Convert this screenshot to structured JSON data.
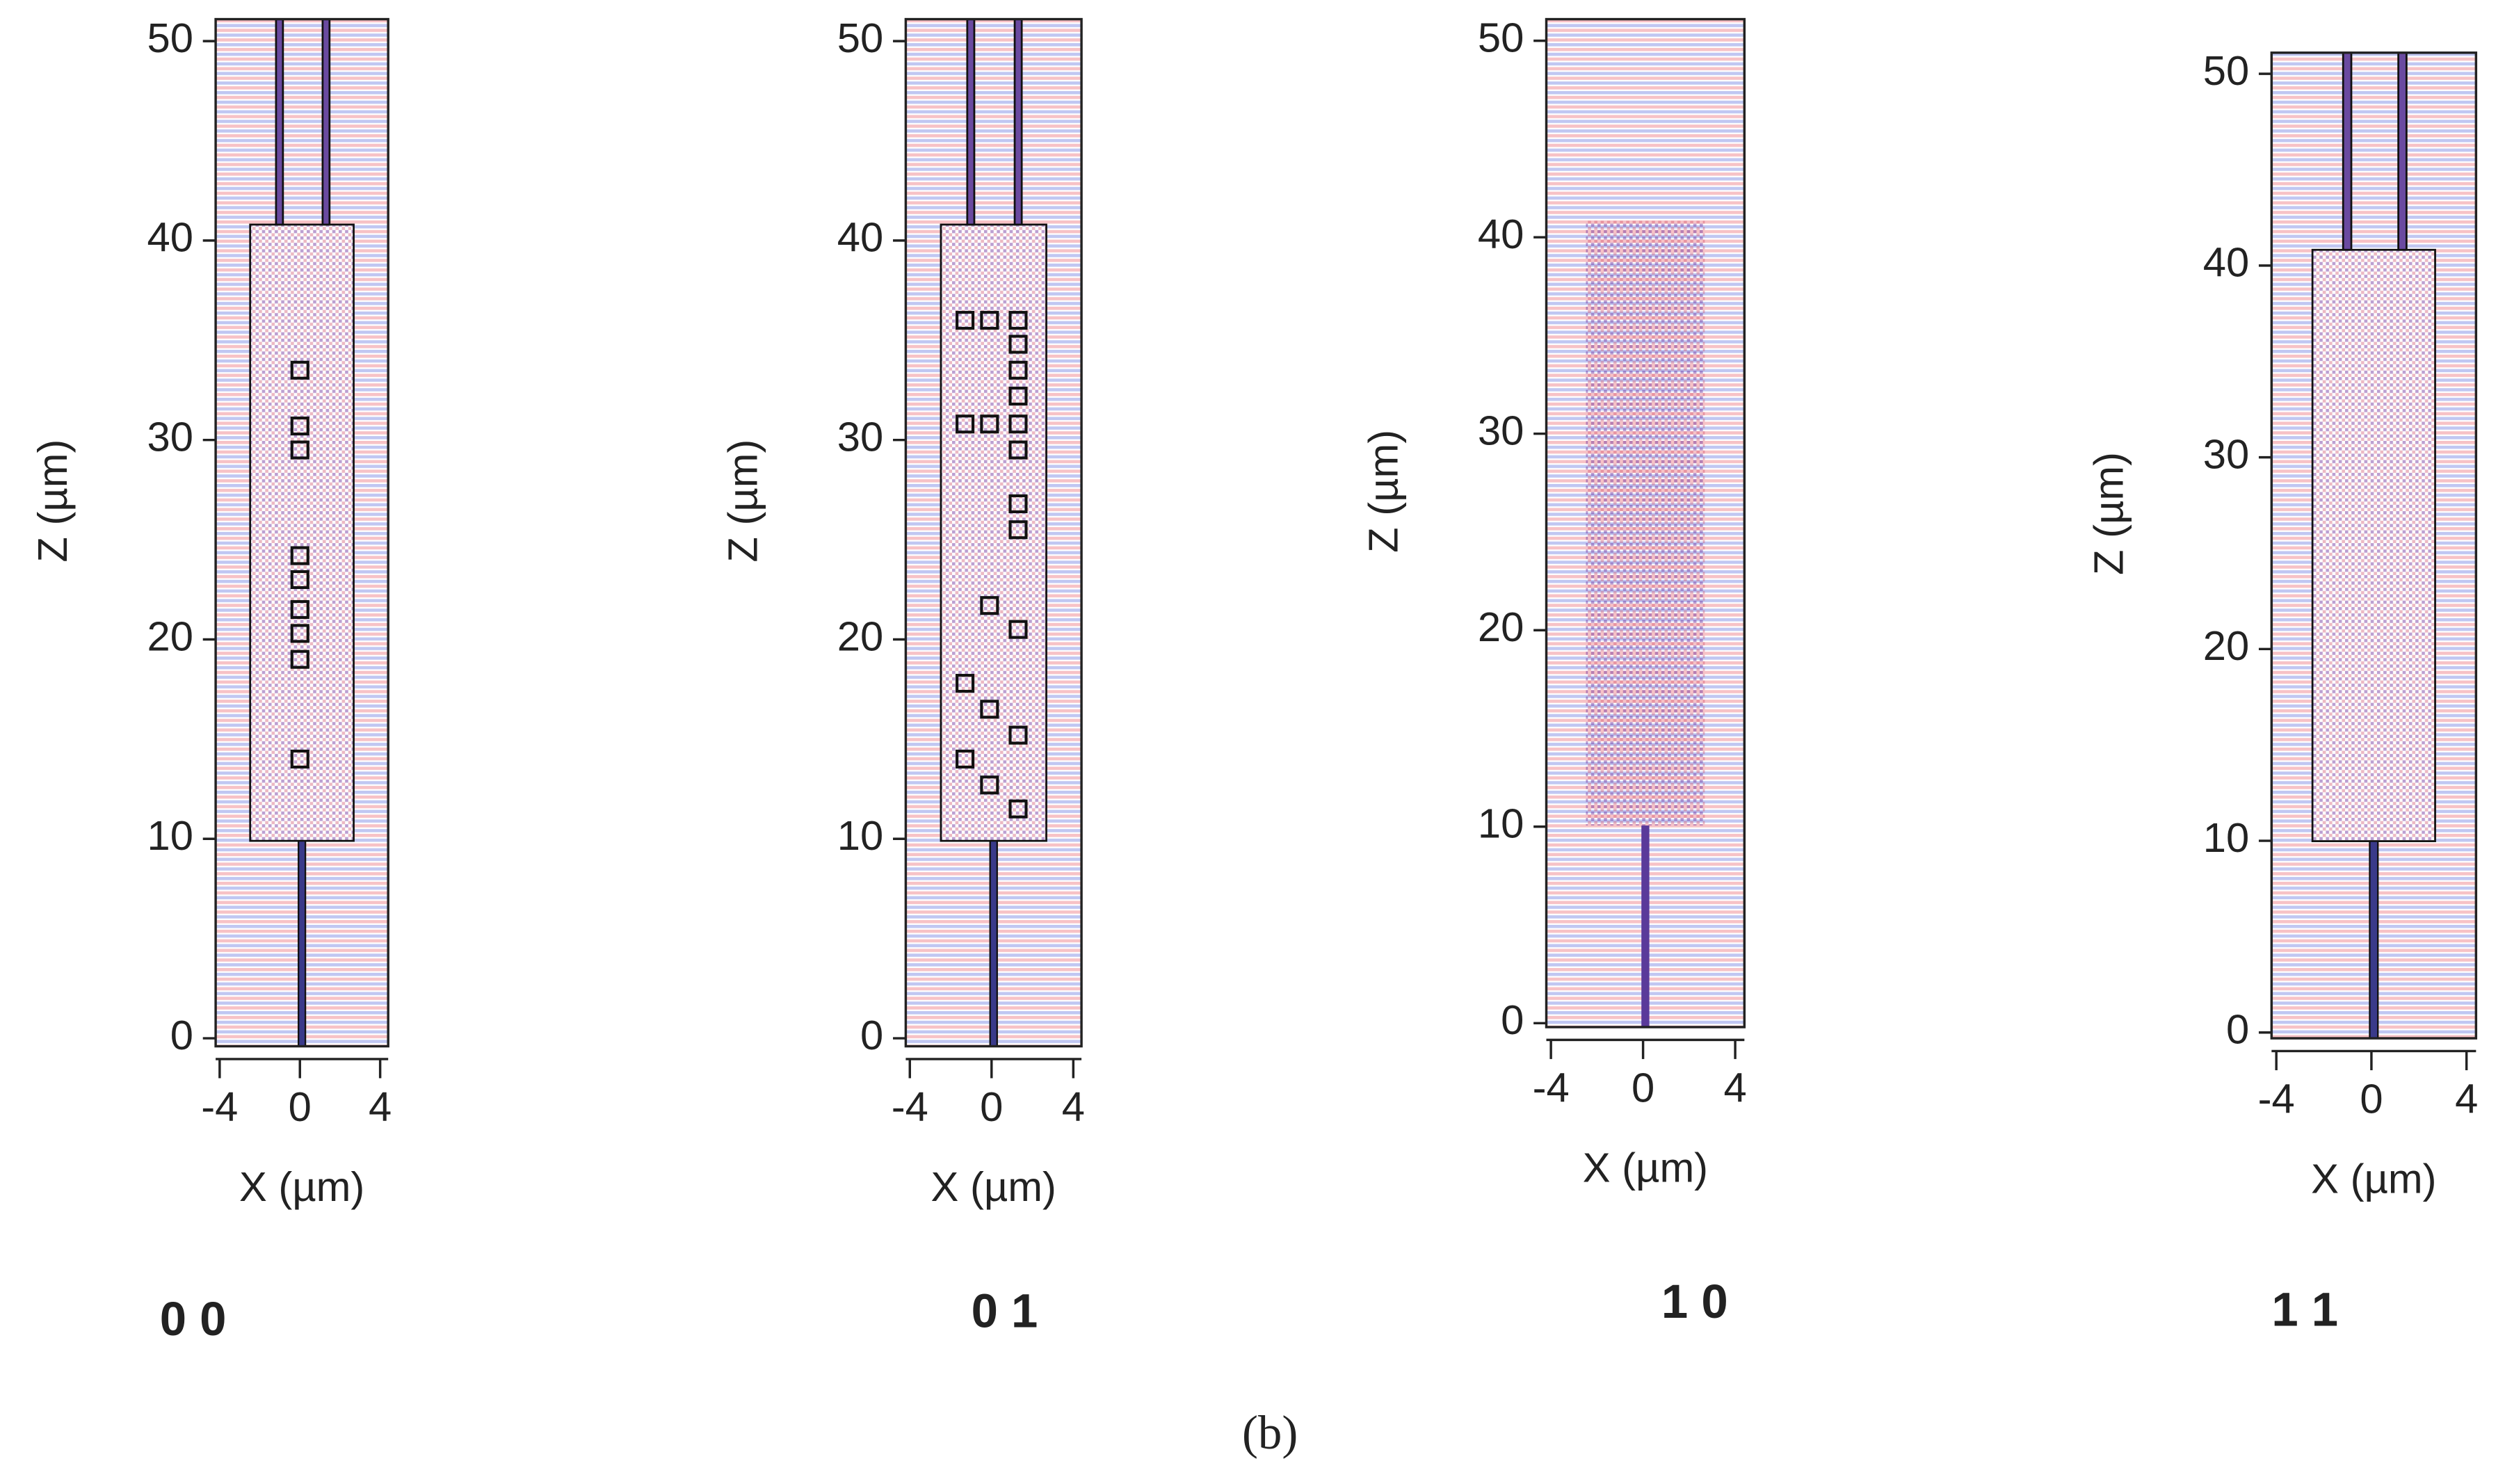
{
  "chart_data": [
    {
      "type": "field",
      "label": "0 0",
      "xlabel": "X (µm)",
      "ylabel": "Z (µm)",
      "xlim": [
        -4.2,
        4.4
      ],
      "ylim": [
        -0.4,
        51.1
      ],
      "xticks": [
        -4,
        0,
        4
      ],
      "yticks": [
        0,
        10,
        20,
        30,
        40,
        50
      ],
      "x": [
        0,
        0,
        0,
        0,
        0,
        0,
        0,
        0,
        0
      ],
      "y": [
        33.5,
        30.7,
        29.5,
        24.2,
        23,
        21.5,
        20.3,
        19,
        14
      ]
    },
    {
      "type": "field",
      "label": "0 1",
      "xlabel": "X (µm)",
      "ylabel": "Z (µm)",
      "xlim": [
        -4.2,
        4.4
      ],
      "ylim": [
        -0.4,
        51.1
      ],
      "xticks": [
        -4,
        0,
        4
      ],
      "yticks": [
        0,
        10,
        20,
        30,
        40,
        50
      ],
      "x": [
        -1.3,
        -0.1,
        1.3,
        1.3,
        1.3,
        1.3,
        -1.3,
        -0.1,
        1.3,
        1.3,
        1.3,
        1.3,
        -0.1,
        1.3,
        -1.3,
        -0.1,
        1.3,
        -1.3,
        -0.1,
        1.3
      ],
      "y": [
        36,
        36,
        36,
        34.8,
        33.5,
        32.2,
        30.8,
        30.8,
        30.8,
        29.5,
        26.8,
        25.5,
        21.7,
        20.5,
        17.8,
        16.5,
        15.2,
        14,
        12.7,
        11.5
      ]
    },
    {
      "type": "field",
      "label": "1 0",
      "xlabel": "X (µm)",
      "ylabel": "Z (µm)",
      "xlim": [
        -4.2,
        4.4
      ],
      "ylim": [
        -0.2,
        51.1
      ],
      "xticks": [
        -4,
        0,
        4
      ],
      "yticks": [
        0,
        10,
        20,
        30,
        40,
        50
      ]
    },
    {
      "type": "field",
      "label": "1 1",
      "xlabel": "X (µm)",
      "ylabel": "Z (µm)",
      "xlim": [
        -4.2,
        4.4
      ],
      "ylim": [
        -0.3,
        51.1
      ],
      "xticks": [
        -4,
        0,
        4
      ],
      "yticks": [
        0,
        10,
        20,
        30,
        40,
        50
      ]
    }
  ],
  "caption": "(b)"
}
